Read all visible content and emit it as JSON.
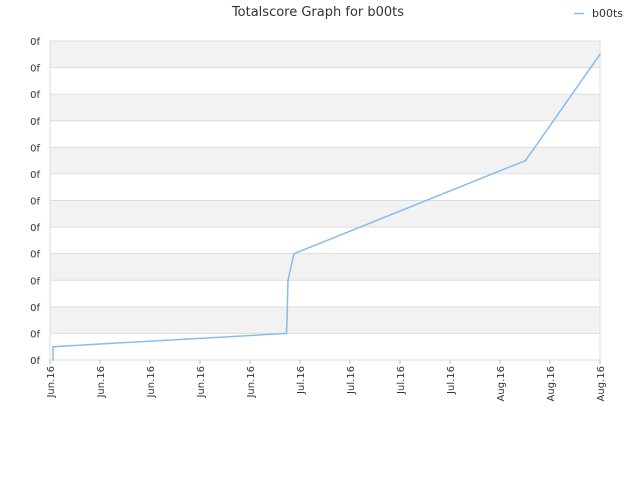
{
  "chart_data": {
    "type": "line",
    "title": "Totalscore Graph for b00ts",
    "xlabel": "",
    "ylabel": "",
    "legend": {
      "placement": "top-right"
    },
    "grid": true,
    "colors": {
      "series": "#88bbee",
      "band": "#f2f2f2",
      "grid_line": "#dddddd",
      "axis_text": "#333333",
      "title_text": "#333333"
    },
    "y_tick_labels": [
      "0f",
      "0f",
      "0f",
      "0f",
      "0f",
      "0f",
      "0f",
      "0f",
      "0f",
      "0f",
      "0f",
      "0f",
      "0f"
    ],
    "x_tick_labels": [
      "Jun.16",
      "Jun.16",
      "Jun.16",
      "Jun.16",
      "Jun.16",
      "Jul.16",
      "Jul.16",
      "Jul.16",
      "Jul.16",
      "Aug.16",
      "Aug.16",
      "Aug.16"
    ],
    "xlim": [
      0,
      11
    ],
    "ylim": [
      0,
      12
    ],
    "series": [
      {
        "name": "b00ts",
        "points": [
          [
            0.06,
            0.0
          ],
          [
            0.06,
            0.5
          ],
          [
            4.73,
            1.0
          ],
          [
            4.74,
            1.5
          ],
          [
            4.76,
            3.0
          ],
          [
            4.88,
            4.0
          ],
          [
            9.51,
            7.5
          ],
          [
            11.0,
            11.5
          ]
        ]
      }
    ]
  }
}
